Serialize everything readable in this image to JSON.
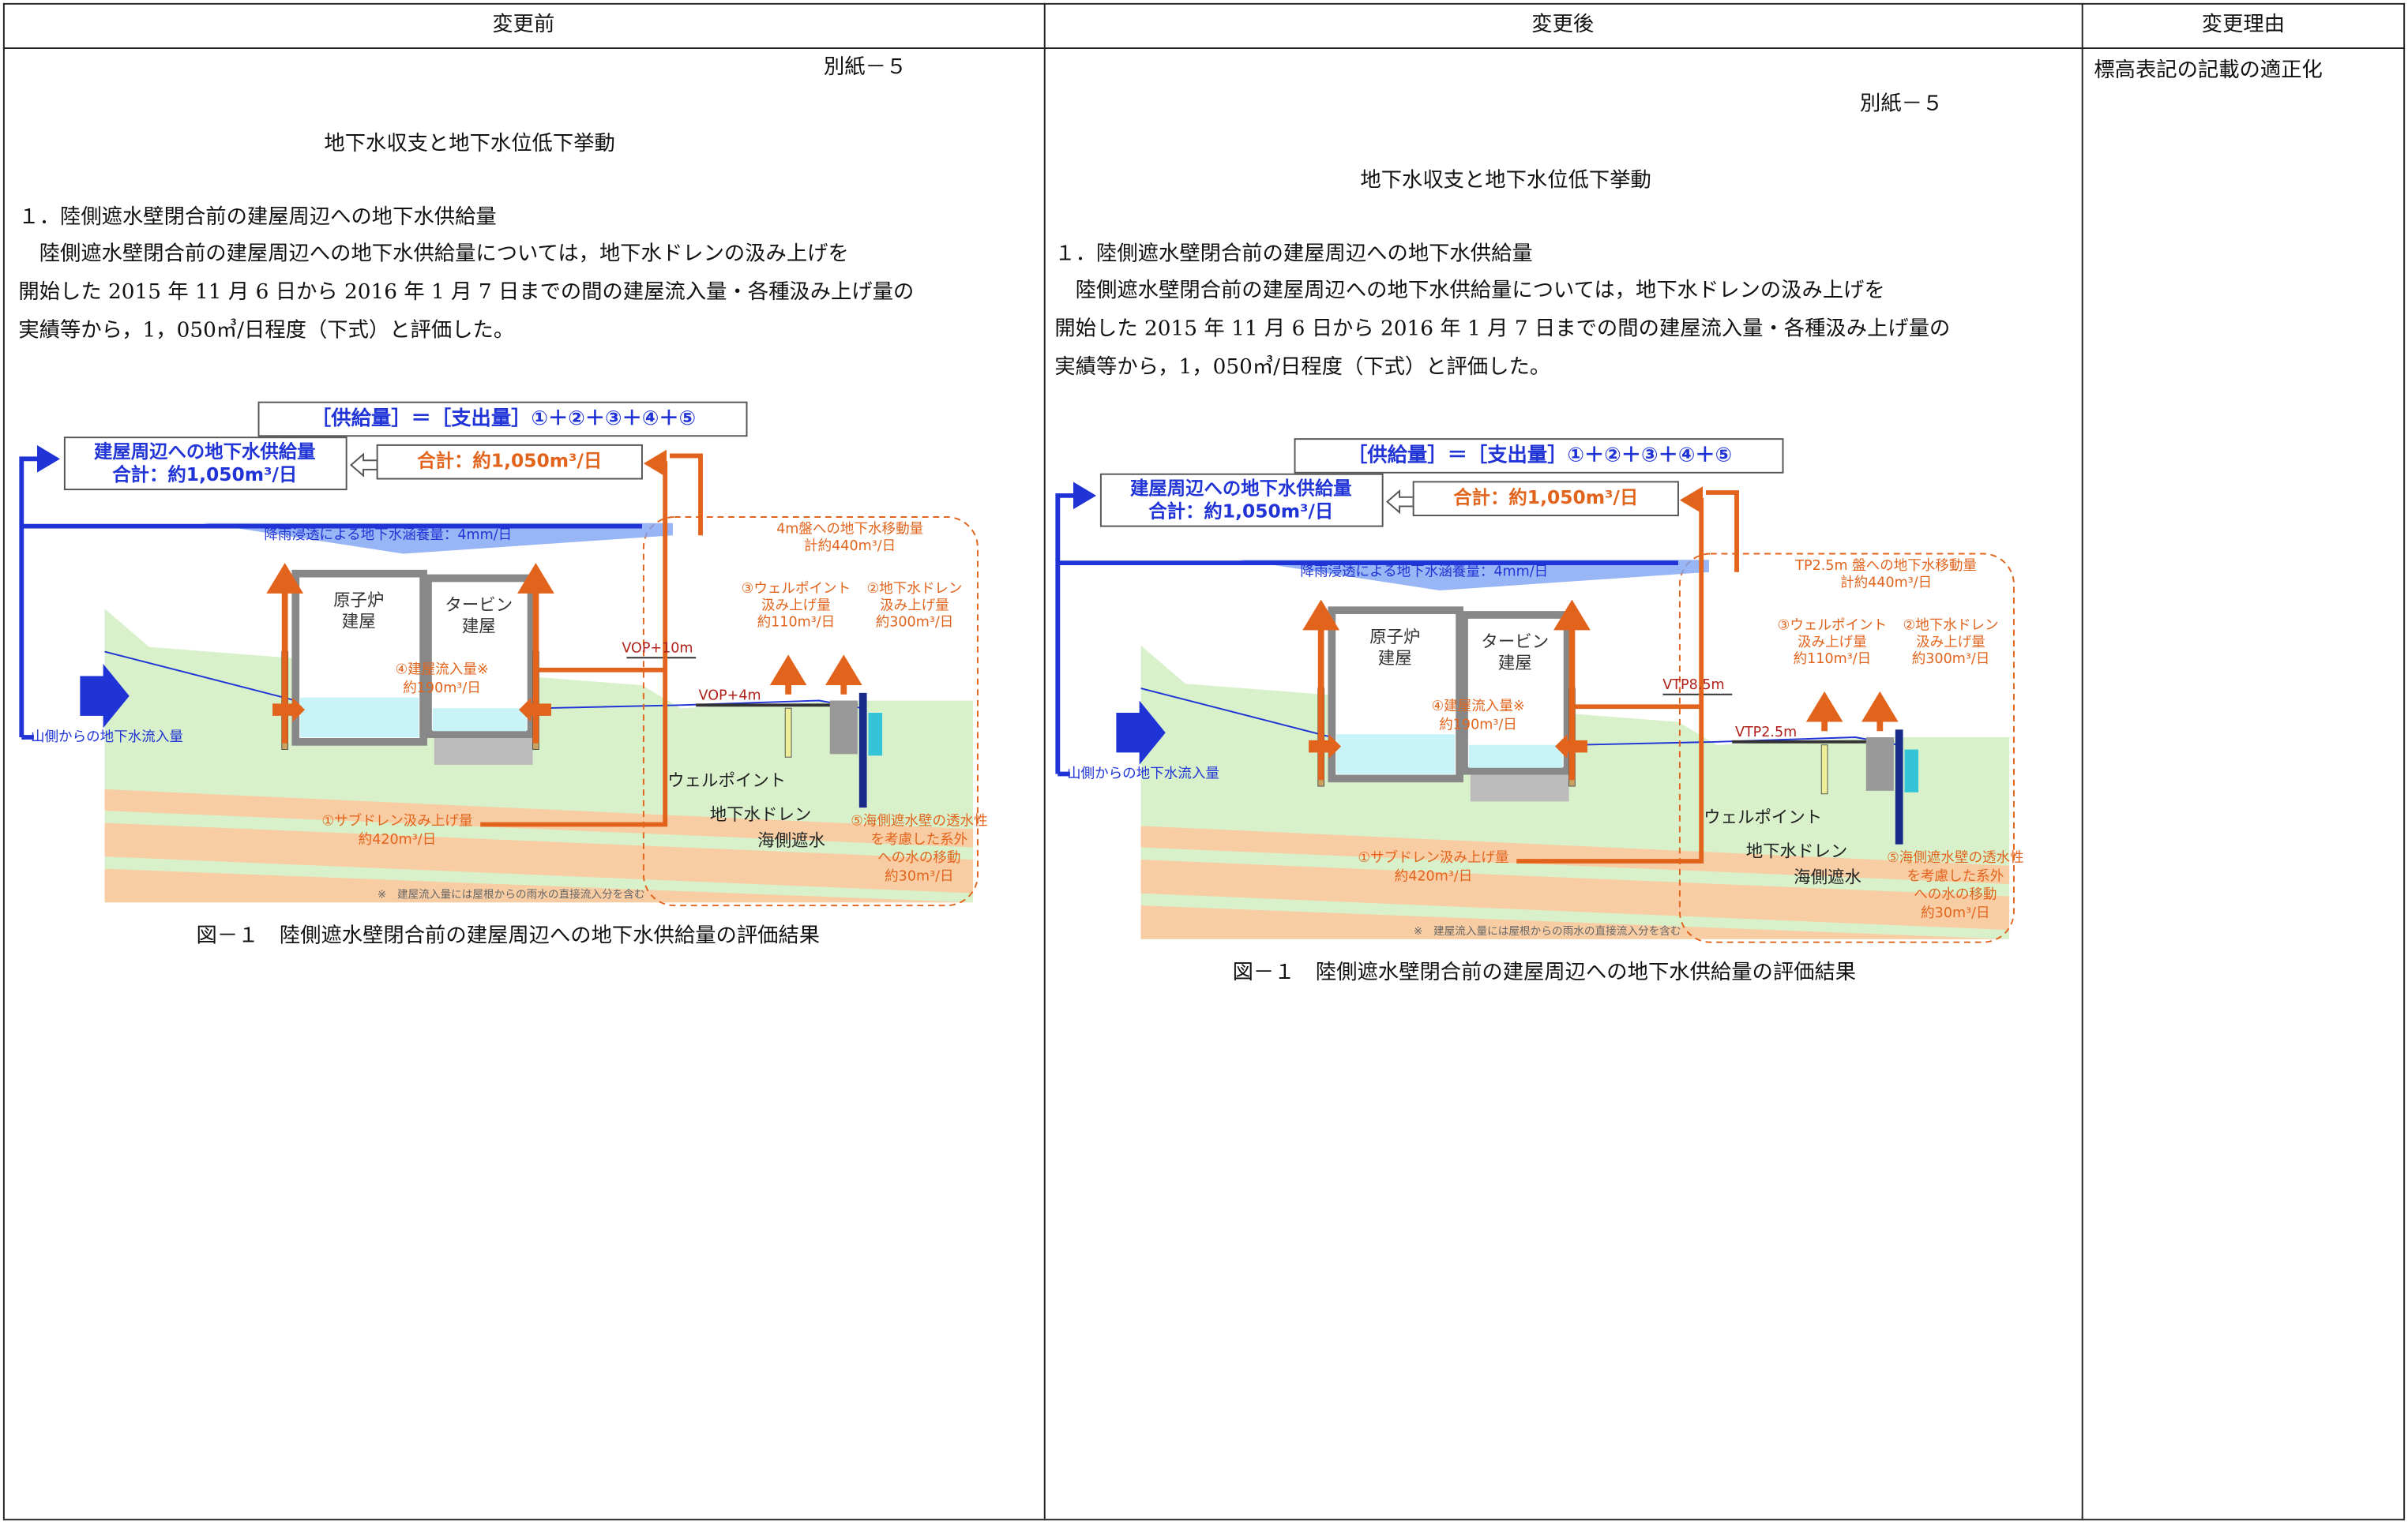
{
  "header": {
    "before": "変更前",
    "after": "変更後",
    "reason": "変更理由"
  },
  "before": {
    "attachment": "別紙－５",
    "title": "地下水収支と地下水位低下挙動",
    "section": "１．陸側遮水壁閉合前の建屋周辺への地下水供給量",
    "paragraph": [
      "　陸側遮水壁閉合前の建屋周辺への地下水供給量については，地下水ドレンの汲み上げを",
      "開始した 2015 年 11 月 6 日から 2016 年 1 月 7 日までの間の建屋流入量・各種汲み上げ量の",
      "実績等から，1，050㎥/日程度（下式）と評価した。"
    ],
    "figure": {
      "formula": "［供給量］＝［支出量］①＋②＋③＋④＋⑤",
      "supply": [
        "建屋周辺への地下水供給量",
        "合計：約1,050m³/日"
      ],
      "total": "合計：約1,050m³/日",
      "rain": "降雨浸透による地下水涵養量：4mm/日",
      "mountain_inflow": "山側からの地下水流入量",
      "reactor": [
        "原子炉",
        "建屋"
      ],
      "turbine": [
        "タービン",
        "建屋"
      ],
      "transfer": [
        "4m盤への地下水移動量",
        "計約440m³/日"
      ],
      "wellpoint_pump": [
        "③ウェルポイント",
        "汲み上げ量",
        "約110m³/日"
      ],
      "drain_pump": [
        "②地下水ドレン",
        "汲み上げ量",
        "約300m³/日"
      ],
      "level_high": "VOP+10m",
      "level_low": "VOP+4m",
      "building_inflow": [
        "④建屋流入量※",
        "約190m³/日"
      ],
      "wellpoint": "ウェルポイント",
      "drain": "地下水ドレン",
      "seawall": "海側遮水",
      "seawall_transfer": [
        "⑤海側遮水壁の透水性",
        "を考慮した系外",
        "への水の移動",
        "約30m³/日"
      ],
      "subdrain": [
        "①サブドレン汲み上げ量",
        "約420m³/日"
      ],
      "note": "※　建屋流入量には屋根からの雨水の直接流入分を含む"
    },
    "caption": "図－１　陸側遮水壁閉合前の建屋周辺への地下水供給量の評価結果"
  },
  "after": {
    "attachment": "別紙－５",
    "title": "地下水収支と地下水位低下挙動",
    "section": "１．陸側遮水壁閉合前の建屋周辺への地下水供給量",
    "paragraph": [
      "　陸側遮水壁閉合前の建屋周辺への地下水供給量については，地下水ドレンの汲み上げを",
      "開始した 2015 年 11 月 6 日から 2016 年 1 月 7 日までの間の建屋流入量・各種汲み上げ量の",
      "実績等から，1，050㎥/日程度（下式）と評価した。"
    ],
    "figure": {
      "formula": "［供給量］＝［支出量］①＋②＋③＋④＋⑤",
      "supply": [
        "建屋周辺への地下水供給量",
        "合計：約1,050m³/日"
      ],
      "total": "合計：約1,050m³/日",
      "rain": "降雨浸透による地下水涵養量：4mm/日",
      "mountain_inflow": "山側からの地下水流入量",
      "reactor": [
        "原子炉",
        "建屋"
      ],
      "turbine": [
        "タービン",
        "建屋"
      ],
      "transfer": [
        "TP2.5m 盤への地下水移動量",
        "計約440m³/日"
      ],
      "wellpoint_pump": [
        "③ウェルポイント",
        "汲み上げ量",
        "約110m³/日"
      ],
      "drain_pump": [
        "②地下水ドレン",
        "汲み上げ量",
        "約300m³/日"
      ],
      "level_high": "VTP8.5m",
      "level_low": "VTP2.5m",
      "building_inflow": [
        "④建屋流入量※",
        "約190m³/日"
      ],
      "wellpoint": "ウェルポイント",
      "drain": "地下水ドレン",
      "seawall": "海側遮水",
      "seawall_transfer": [
        "⑤海側遮水壁の透水性",
        "を考慮した系外",
        "への水の移動",
        "約30m³/日"
      ],
      "subdrain": [
        "①サブドレン汲み上げ量",
        "約420m³/日"
      ],
      "note": "※　建屋流入量には屋根からの雨水の直接流入分を含む"
    },
    "caption": "図－１　陸側遮水壁閉合前の建屋周辺への地下水供給量の評価結果"
  },
  "reason": "標高表記の記載の適正化"
}
